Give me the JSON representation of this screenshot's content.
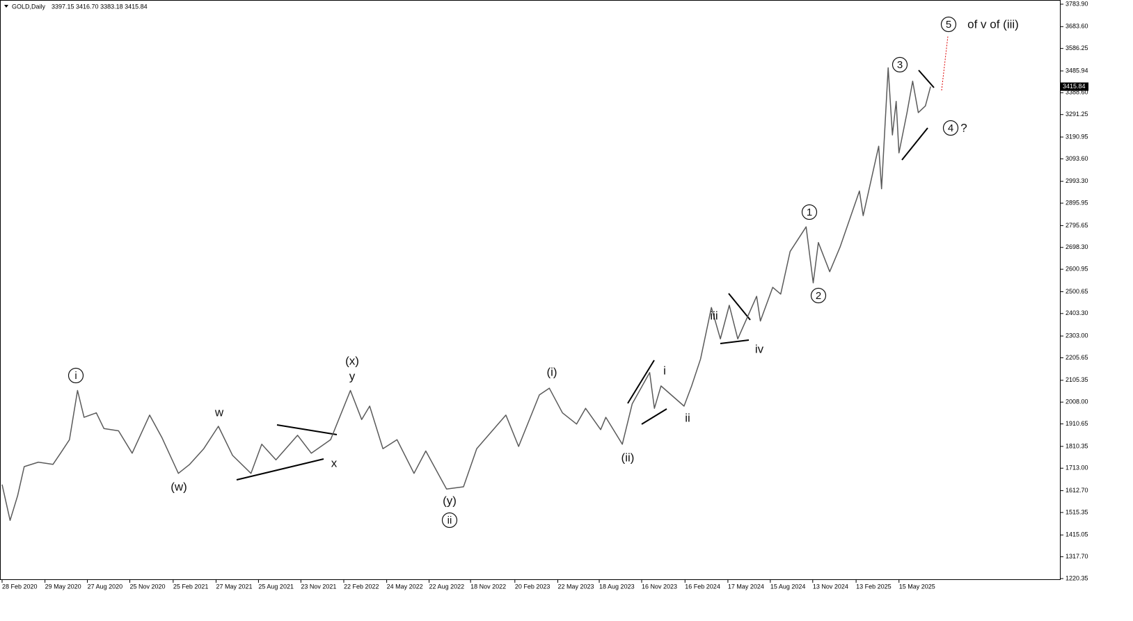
{
  "chart_data": {
    "type": "line",
    "title": "GOLD,Daily",
    "header_text": "3397.15 3416.70 3383.18 3415.84",
    "color": "#5a5a5a",
    "x": [
      "28 Feb 2020",
      "16 Mar 2020",
      "1 Apr 2020",
      "15 Apr 2020",
      "15 May 2020",
      "15 Jun 2020",
      "1 Jul 2020",
      "20 Jul 2020",
      "6 Aug 2020",
      "20 Aug 2020",
      "15 Sep 2020",
      "1 Oct 2020",
      "1 Nov 2020",
      "30 Nov 2020",
      "6 Jan 2021",
      "1 Feb 2021",
      "8 Mar 2021",
      "1 Apr 2021",
      "1 May 2021",
      "1 Jun 2021",
      "1 Jul 2021",
      "9 Aug 2021",
      "1 Sep 2021",
      "1 Oct 2021",
      "16 Nov 2021",
      "15 Dec 2021",
      "25 Jan 2022",
      "8 Mar 2022",
      "1 Apr 2022",
      "18 Apr 2022",
      "16 May 2022",
      "15 Jun 2022",
      "21 Jul 2022",
      "15 Aug 2022",
      "28 Sep 2022",
      "3 Nov 2022",
      "1 Dec 2022",
      "1 Feb 2023",
      "28 Feb 2023",
      "13 Apr 2023",
      "4 May 2023",
      "1 Jun 2023",
      "1 Jul 2023",
      "20 Jul 2023",
      "21 Aug 2023",
      "1 Sep 2023",
      "6 Oct 2023",
      "27 Oct 2023",
      "3 Dec 2023",
      "13 Dec 2023",
      "27 Dec 2023",
      "14 Feb 2024",
      "1 Mar 2024",
      "20 Mar 2024",
      "12 Apr 2024",
      "1 May 2024",
      "20 May 2024",
      "7 Jun 2024",
      "17 Jul 2024",
      "25 Jul 2024",
      "20 Aug 2024",
      "6 Sep 2024",
      "26 Sep 2024",
      "30 Oct 2024",
      "14 Nov 2024",
      "25 Nov 2024",
      "19 Dec 2024",
      "10 Jan 2025",
      "20 Feb 2025",
      "28 Feb 2025",
      "2 Apr 2025",
      "8 Apr 2025",
      "22 Apr 2025",
      "1 May 2025",
      "9 May 2025",
      "15 May 2025",
      "1 Jun 2025",
      "13 Jun 2025",
      "25 Jun 2025",
      "10 Jul 2025",
      "21 Jul 2025"
    ],
    "values": [
      1640,
      1480,
      1590,
      1720,
      1740,
      1730,
      1780,
      1840,
      2060,
      1940,
      1960,
      1890,
      1880,
      1780,
      1950,
      1850,
      1690,
      1730,
      1800,
      1900,
      1770,
      1690,
      1820,
      1750,
      1860,
      1780,
      1840,
      2060,
      1930,
      1990,
      1800,
      1840,
      1690,
      1790,
      1620,
      1630,
      1800,
      1950,
      1810,
      2040,
      2070,
      1960,
      1910,
      1980,
      1885,
      1940,
      1820,
      2000,
      2140,
      1980,
      2080,
      1990,
      2080,
      2200,
      2430,
      2290,
      2440,
      2290,
      2480,
      2370,
      2520,
      2490,
      2680,
      2790,
      2540,
      2720,
      2590,
      2700,
      2950,
      2840,
      3150,
      2960,
      3500,
      3200,
      3350,
      3120,
      3300,
      3440,
      3300,
      3330,
      3415.84
    ],
    "last_price": 3415.84,
    "xlim": [
      "28 Feb 2020",
      "20 Apr 2026"
    ],
    "xticks": [
      "28 Feb 2020",
      "29 May 2020",
      "27 Aug 2020",
      "25 Nov 2020",
      "25 Feb 2021",
      "27 May 2021",
      "25 Aug 2021",
      "23 Nov 2021",
      "22 Feb 2022",
      "24 May 2022",
      "22 Aug 2022",
      "18 Nov 2022",
      "20 Feb 2023",
      "22 May 2023",
      "18 Aug 2023",
      "16 Nov 2023",
      "16 Feb 2024",
      "17 May 2024",
      "15 Aug 2024",
      "13 Nov 2024",
      "13 Feb 2025",
      "15 May 2025"
    ],
    "ylim": [
      1220.35,
      3783.9
    ],
    "yticks": [
      {
        "value": 1220.35,
        "label": "1220.35"
      },
      {
        "value": 1317.7,
        "label": "1317.70"
      },
      {
        "value": 1415.05,
        "label": "1415.05"
      },
      {
        "value": 1515.35,
        "label": "1515.35"
      },
      {
        "value": 1612.7,
        "label": "1612.70"
      },
      {
        "value": 1713,
        "label": "1713.00"
      },
      {
        "value": 1810.35,
        "label": "1810.35"
      },
      {
        "value": 1910.65,
        "label": "1910.65"
      },
      {
        "value": 2008,
        "label": "2008.00"
      },
      {
        "value": 2105.35,
        "label": "2105.35"
      },
      {
        "value": 2205.65,
        "label": "2205.65"
      },
      {
        "value": 2303,
        "label": "2303.00"
      },
      {
        "value": 2403.3,
        "label": "2403.30"
      },
      {
        "value": 2500.65,
        "label": "2500.65"
      },
      {
        "value": 2600.95,
        "label": "2600.95"
      },
      {
        "value": 2698.3,
        "label": "2698.30"
      },
      {
        "value": 2795.65,
        "label": "2795.65"
      },
      {
        "value": 2895.95,
        "label": "2895.95"
      },
      {
        "value": 2993.3,
        "label": "2993.30"
      },
      {
        "value": 3093.6,
        "label": "3093.60"
      },
      {
        "value": 3190.95,
        "label": "3190.95"
      },
      {
        "value": 3291.25,
        "label": "3291.25"
      },
      {
        "value": 3388.6,
        "label": "3388.60"
      },
      {
        "value": 3485.94,
        "label": "3485.94"
      },
      {
        "value": 3586.25,
        "label": "3586.25"
      },
      {
        "value": 3683.6,
        "label": "3683.60"
      },
      {
        "value": 3783.9,
        "label": "3783.90"
      }
    ],
    "annotations": [
      "i",
      "w",
      "(w)",
      "x",
      "(x)",
      "y",
      "(y)",
      "ii",
      "(i)",
      "(ii)",
      "i",
      "ii",
      "iii",
      "iv",
      "1",
      "2",
      "3",
      "4",
      "?",
      "5",
      "of v of (iii)"
    ]
  }
}
